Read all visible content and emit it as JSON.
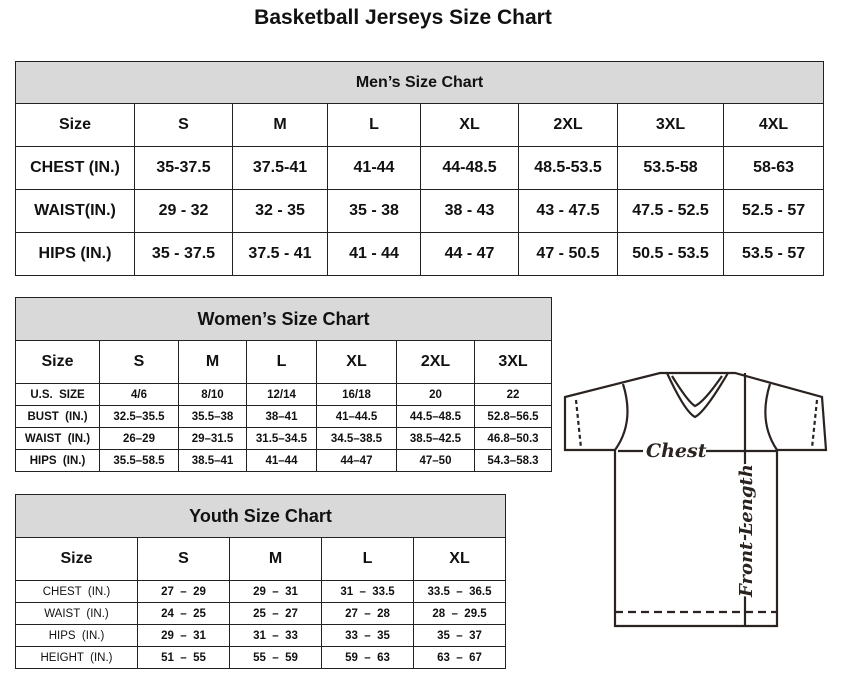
{
  "title": "Basketball Jerseys Size Chart",
  "men": {
    "heading": "Men’s Size Chart",
    "columns": [
      "Size",
      "S",
      "M",
      "L",
      "XL",
      "2XL",
      "3XL",
      "4XL"
    ],
    "rows": [
      [
        "CHEST (IN.)",
        "35-37.5",
        "37.5-41",
        "41-44",
        "44-48.5",
        "48.5-53.5",
        "53.5-58",
        "58-63"
      ],
      [
        "WAIST(IN.)",
        "29 - 32",
        "32 - 35",
        "35 - 38",
        "38 - 43",
        "43 - 47.5",
        "47.5 - 52.5",
        "52.5 - 57"
      ],
      [
        "HIPS (IN.)",
        "35 - 37.5",
        "37.5 - 41",
        "41 - 44",
        "44 - 47",
        "47 - 50.5",
        "50.5 - 53.5",
        "53.5 - 57"
      ]
    ]
  },
  "women": {
    "heading": "Women’s Size Chart",
    "columns": [
      "Size",
      "S",
      "M",
      "L",
      "XL",
      "2XL",
      "3XL"
    ],
    "rows": [
      [
        "U.S.  SIZE",
        "4/6",
        "8/10",
        "12/14",
        "16/18",
        "20",
        "22"
      ],
      [
        "BUST  (IN.)",
        "32.5–35.5",
        "35.5–38",
        "38–41",
        "41–44.5",
        "44.5–48.5",
        "52.8–56.5"
      ],
      [
        "WAIST  (IN.)",
        "26–29",
        "29–31.5",
        "31.5–34.5",
        "34.5–38.5",
        "38.5–42.5",
        "46.8–50.3"
      ],
      [
        "HIPS  (IN.)",
        "35.5–58.5",
        "38.5–41",
        "41–44",
        "44–47",
        "47–50",
        "54.3–58.3"
      ]
    ]
  },
  "youth": {
    "heading": "Youth Size Chart",
    "columns": [
      "Size",
      "S",
      "M",
      "L",
      "XL"
    ],
    "rows": [
      [
        "CHEST  (IN.)",
        "27  –  29",
        "29  –  31",
        "31  –  33.5",
        "33.5  –  36.5"
      ],
      [
        "WAIST  (IN.)",
        "24  –  25",
        "25  –  27",
        "27  –  28",
        "28  –  29.5"
      ],
      [
        "HIPS  (IN.)",
        "29  –  31",
        "31  –  33",
        "33  –  35",
        "35  –  37"
      ],
      [
        "HEIGHT  (IN.)",
        "51  –  55",
        "55  –  59",
        "59  –  63",
        "63  –  67"
      ]
    ]
  },
  "diagram": {
    "chest_label": "Chest",
    "length_label": "Front Length"
  }
}
